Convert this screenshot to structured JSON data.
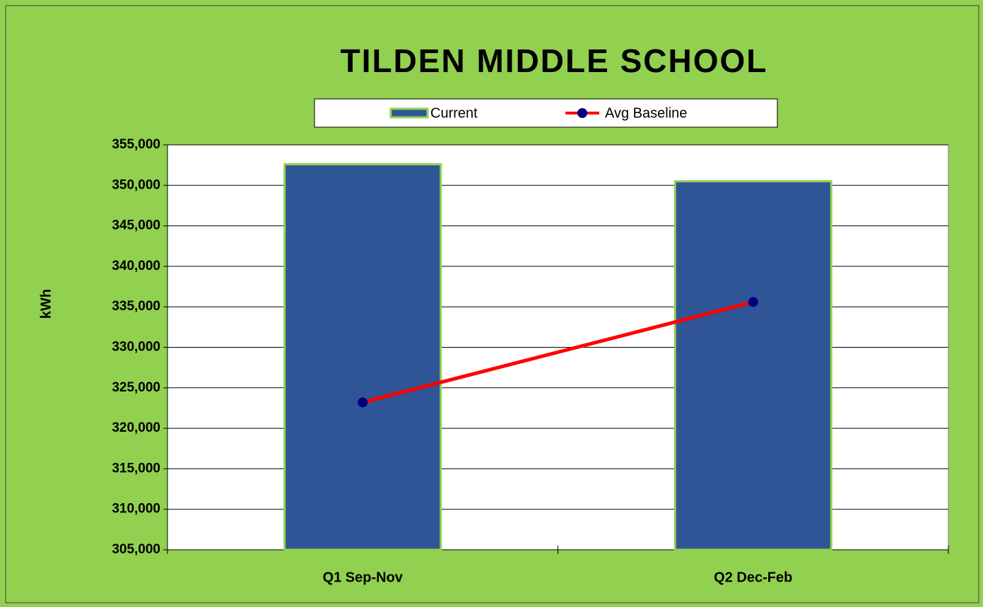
{
  "chart_data": {
    "type": "bar",
    "title": "TILDEN MIDDLE SCHOOL",
    "y_label": "kWh",
    "categories": [
      "Q1 Sep-Nov",
      "Q2 Dec-Feb"
    ],
    "series": [
      {
        "name": "Current",
        "type": "bar",
        "color": "#2f5597",
        "values": [
          352600,
          350500
        ]
      },
      {
        "name": "Avg Baseline",
        "type": "line",
        "color": "#ff0000",
        "marker_color": "#00007f",
        "values": [
          323200,
          335600
        ]
      }
    ],
    "ylim": [
      305000,
      355000
    ],
    "yticks": [
      {
        "value": 305000,
        "label": "305,000"
      },
      {
        "value": 310000,
        "label": "310,000"
      },
      {
        "value": 315000,
        "label": "315,000"
      },
      {
        "value": 320000,
        "label": "320,000"
      },
      {
        "value": 325000,
        "label": "325,000"
      },
      {
        "value": 330000,
        "label": "330,000"
      },
      {
        "value": 335000,
        "label": "335,000"
      },
      {
        "value": 340000,
        "label": "340,000"
      },
      {
        "value": 345000,
        "label": "345,000"
      },
      {
        "value": 350000,
        "label": "350,000"
      },
      {
        "value": 355000,
        "label": "355,000"
      }
    ],
    "grid": true,
    "legend": "top"
  }
}
